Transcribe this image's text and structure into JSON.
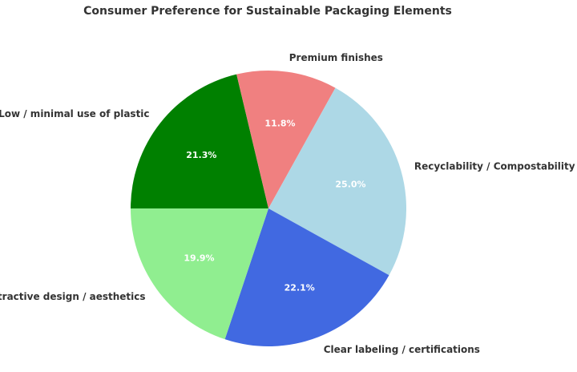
{
  "chart_data": {
    "type": "pie",
    "title": "Consumer Preference for Sustainable Packaging Elements",
    "start_angle_deg": 180,
    "direction": "clockwise",
    "slices": [
      {
        "label": "Low / minimal use of plastic",
        "value": 21.3,
        "pct_label": "21.3%",
        "color": "#008000"
      },
      {
        "label": "Premium finishes",
        "value": 11.8,
        "pct_label": "11.8%",
        "color": "#f08080"
      },
      {
        "label": "Recyclability / Compostability",
        "value": 25.0,
        "pct_label": "25.0%",
        "color": "#add8e6"
      },
      {
        "label": "Clear labeling / certifications",
        "value": 22.1,
        "pct_label": "22.1%",
        "color": "#4169e1"
      },
      {
        "label": "Attractive design / aesthetics",
        "value": 19.9,
        "pct_label": "19.9%",
        "color": "#90ee90"
      }
    ]
  }
}
